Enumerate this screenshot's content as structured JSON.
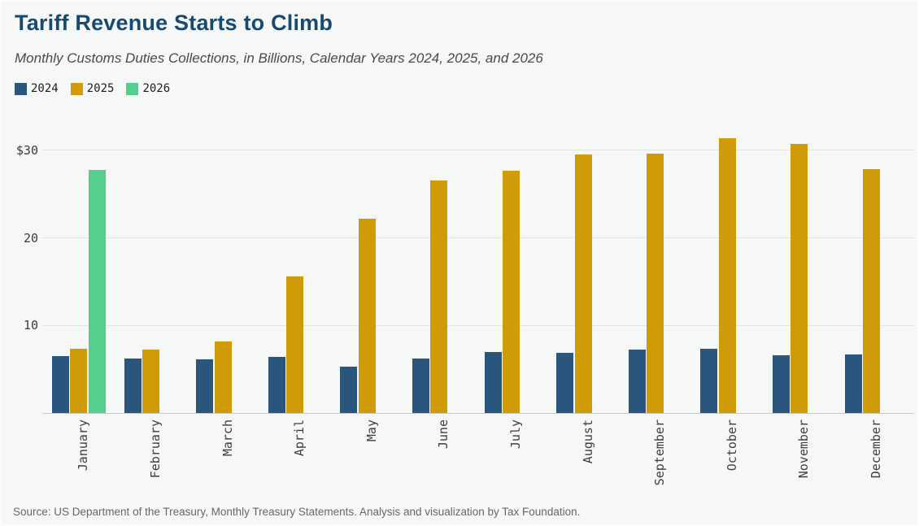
{
  "header": {
    "title": "Tariff Revenue Starts to Climb",
    "subtitle": "Monthly Customs Duties Collections, in Billions, Calendar Years 2024, 2025, and 2026"
  },
  "footer": {
    "source": "Source: US Department of the Treasury, Monthly Treasury Statements. Analysis and visualization by Tax Foundation."
  },
  "colors": {
    "series_2024": "#2a567d",
    "series_2025": "#cf9c08",
    "series_2026": "#55cf8e",
    "title_text": "#164a6e",
    "background": "#f6f7f7",
    "gridline": "#e1e2e2"
  },
  "chart_data": {
    "type": "bar",
    "title": "Tariff Revenue Starts to Climb",
    "subtitle": "Monthly Customs Duties Collections, in Billions, Calendar Years 2024, 2025, and 2026",
    "xlabel": "",
    "ylabel": "",
    "grid": "horizontal",
    "legend_position": "top-left",
    "ylim": [
      0,
      32.3
    ],
    "y_axis_ticks": [
      {
        "value": 10,
        "label": "10"
      },
      {
        "value": 20,
        "label": "20"
      },
      {
        "value": 30,
        "label": "$30"
      }
    ],
    "categories": [
      "January",
      "February",
      "March",
      "April",
      "May",
      "June",
      "July",
      "August",
      "September",
      "October",
      "November",
      "December"
    ],
    "series": [
      {
        "name": "2024",
        "color": "#2a567d",
        "values": [
          6.5,
          6.2,
          6.1,
          6.4,
          5.3,
          6.2,
          7.0,
          6.9,
          7.2,
          7.3,
          6.6,
          6.7
        ]
      },
      {
        "name": "2025",
        "color": "#cf9c08",
        "values": [
          7.3,
          7.2,
          8.2,
          15.6,
          22.2,
          26.6,
          27.7,
          29.5,
          29.6,
          31.4,
          30.7,
          27.9
        ]
      },
      {
        "name": "2026",
        "color": "#55cf8e",
        "values": [
          27.8,
          null,
          null,
          null,
          null,
          null,
          null,
          null,
          null,
          null,
          null,
          null
        ]
      }
    ]
  }
}
